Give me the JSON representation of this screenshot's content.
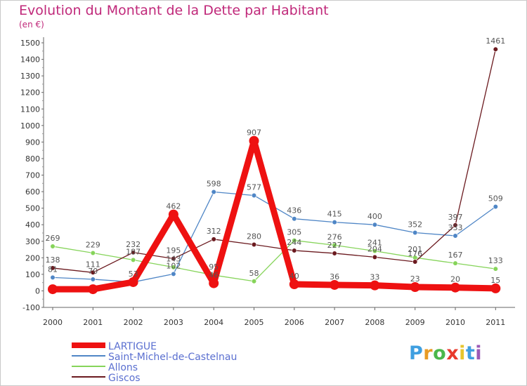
{
  "title": "Evolution du Montant de la Dette par Habitant",
  "unit": "(en €)",
  "logo_letters": [
    "P",
    "r",
    "o",
    "x",
    "i",
    "t",
    "i"
  ],
  "logo_colors": [
    "#3f9fe0",
    "#e89b24",
    "#4bb84b",
    "#e83a2c",
    "#e6c52e",
    "#3f9fe0",
    "#9b59b6"
  ],
  "chart_data": {
    "type": "line",
    "x": [
      "2000",
      "2001",
      "2002",
      "2003",
      "2004",
      "2005",
      "2006",
      "2007",
      "2008",
      "2009",
      "2010",
      "2011"
    ],
    "ylim": [
      -100,
      1500
    ],
    "yticks": [
      -100,
      0,
      100,
      200,
      300,
      400,
      500,
      600,
      700,
      800,
      900,
      1000,
      1100,
      1200,
      1300,
      1400,
      1500
    ],
    "grid": false,
    "legend_position": "bottom-left",
    "series": [
      {
        "name": "Saint-Michel-de-Castelnau",
        "color": "#4f86c6",
        "values": [
          81,
          70,
          53,
          102,
          598,
          577,
          436,
          415,
          400,
          352,
          333,
          509
        ],
        "labels": [
          "81",
          "70",
          "53",
          "102",
          "598",
          "577",
          "436",
          "415",
          "400",
          "352",
          "333",
          "509"
        ]
      },
      {
        "name": "Allons",
        "color": "#86d45a",
        "values": [
          269,
          229,
          187,
          143,
          95,
          58,
          305,
          276,
          241,
          201,
          167,
          133
        ],
        "labels": [
          "269",
          "229",
          "187",
          "143",
          "95",
          "58",
          "305",
          "276",
          "241",
          "201",
          "167",
          "133"
        ]
      },
      {
        "name": "Giscos",
        "color": "#6b1a1f",
        "values": [
          138,
          111,
          232,
          195,
          312,
          280,
          244,
          227,
          204,
          176,
          397,
          1461
        ],
        "labels": [
          "138",
          "111",
          "232",
          "195",
          "312",
          "280",
          "244",
          "227",
          "204",
          "176",
          "397",
          "1461"
        ]
      },
      {
        "name": "LARTIGUE",
        "color": "#ee1111",
        "values": [
          10,
          10,
          53,
          462,
          46,
          907,
          40,
          36,
          33,
          23,
          20,
          15
        ],
        "labels": [
          "",
          "",
          "",
          "462",
          "46",
          "907",
          "40",
          "36",
          "33",
          "23",
          "20",
          "15"
        ]
      }
    ],
    "legend_order": [
      "LARTIGUE",
      "Saint-Michel-de-Castelnau",
      "Allons",
      "Giscos"
    ]
  }
}
